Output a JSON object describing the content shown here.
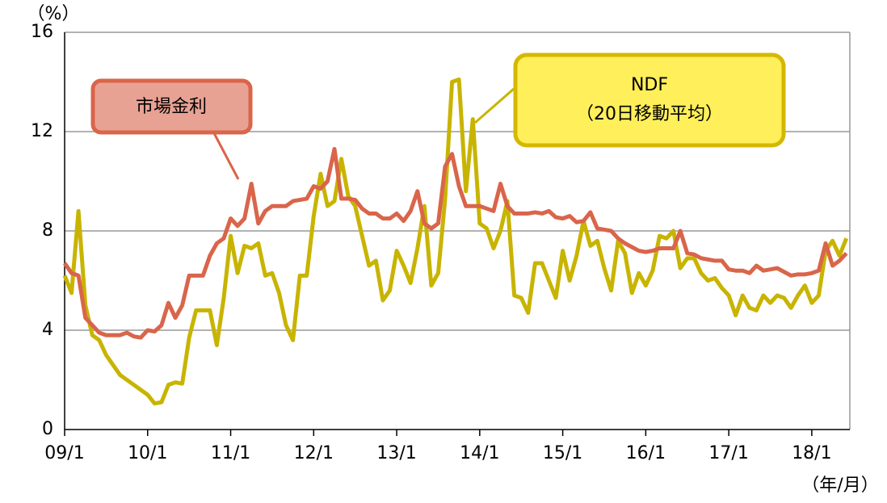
{
  "chart_data": {
    "type": "line",
    "y_unit": "（%）",
    "x_unit": "（年/月）",
    "annotations": [
      "（20日移動平均）"
    ],
    "categories": [
      "09/1",
      null,
      null,
      null,
      null,
      null,
      null,
      null,
      null,
      null,
      null,
      null,
      "10/1",
      null,
      null,
      null,
      null,
      null,
      null,
      null,
      null,
      null,
      null,
      null,
      "11/1",
      null,
      null,
      null,
      null,
      null,
      null,
      null,
      null,
      null,
      null,
      null,
      "12/1",
      null,
      null,
      null,
      null,
      null,
      null,
      null,
      null,
      null,
      null,
      null,
      "13/1",
      null,
      null,
      null,
      null,
      null,
      null,
      null,
      null,
      null,
      null,
      null,
      "14/1",
      null,
      null,
      null,
      null,
      null,
      null,
      null,
      null,
      null,
      null,
      null,
      "15/1",
      null,
      null,
      null,
      null,
      null,
      null,
      null,
      null,
      null,
      null,
      null,
      "16/1",
      null,
      null,
      null,
      null,
      null,
      null,
      null,
      null,
      null,
      null,
      null,
      "17/1",
      null,
      null,
      null,
      null,
      null,
      null,
      null,
      null,
      null,
      null,
      null,
      "18/1",
      null,
      null,
      null,
      null,
      null
    ],
    "series": [
      {
        "name": "市場金利",
        "color": "#d9654a",
        "values": [
          6.7,
          6.3,
          6.2,
          4.5,
          4.2,
          3.9,
          3.8,
          3.8,
          3.8,
          3.9,
          3.75,
          3.7,
          4.0,
          3.95,
          4.2,
          5.1,
          4.5,
          5.0,
          6.2,
          6.2,
          6.2,
          7.0,
          7.5,
          7.7,
          8.5,
          8.2,
          8.5,
          9.9,
          8.3,
          8.8,
          9.0,
          9.0,
          9.0,
          9.2,
          9.25,
          9.3,
          9.8,
          9.7,
          10.0,
          11.3,
          9.3,
          9.3,
          9.25,
          8.9,
          8.7,
          8.7,
          8.5,
          8.5,
          8.7,
          8.4,
          8.8,
          9.6,
          8.3,
          8.1,
          8.3,
          10.6,
          11.1,
          9.8,
          9.0,
          9.0,
          9.0,
          8.9,
          8.8,
          9.9,
          9.0,
          8.7,
          8.7,
          8.7,
          8.75,
          8.7,
          8.8,
          8.55,
          8.5,
          8.6,
          8.35,
          8.4,
          8.75,
          8.1,
          8.05,
          8.0,
          7.7,
          7.5,
          7.35,
          7.2,
          7.15,
          7.2,
          7.3,
          7.3,
          7.3,
          8.0,
          7.1,
          7.05,
          6.9,
          6.85,
          6.8,
          6.8,
          6.45,
          6.4,
          6.4,
          6.3,
          6.6,
          6.4,
          6.45,
          6.5,
          6.35,
          6.2,
          6.25,
          6.25,
          6.3,
          6.4,
          7.5,
          6.6,
          6.8,
          7.1
        ]
      },
      {
        "name": "NDF",
        "color": "#c8b400",
        "values": [
          6.2,
          5.5,
          8.8,
          5.0,
          3.8,
          3.6,
          3.0,
          2.6,
          2.2,
          2.0,
          1.8,
          1.6,
          1.4,
          1.05,
          1.1,
          1.8,
          1.9,
          1.85,
          3.7,
          4.8,
          4.8,
          4.8,
          3.4,
          5.3,
          7.8,
          6.3,
          7.4,
          7.3,
          7.5,
          6.2,
          6.3,
          5.5,
          4.2,
          3.6,
          6.2,
          6.2,
          8.6,
          10.3,
          9.0,
          9.2,
          10.9,
          9.4,
          9.0,
          7.8,
          6.6,
          6.8,
          5.2,
          5.6,
          7.2,
          6.6,
          5.9,
          7.3,
          9.0,
          5.8,
          6.3,
          9.3,
          14.0,
          14.1,
          9.6,
          12.5,
          8.3,
          8.1,
          7.3,
          8.0,
          9.2,
          5.4,
          5.3,
          4.7,
          6.7,
          6.7,
          6.0,
          5.3,
          7.2,
          6.0,
          7.0,
          8.4,
          7.4,
          7.6,
          6.5,
          5.6,
          7.6,
          7.1,
          5.5,
          6.3,
          5.8,
          6.4,
          7.8,
          7.7,
          8.0,
          6.5,
          6.9,
          6.9,
          6.3,
          6.0,
          6.1,
          5.7,
          5.4,
          4.6,
          5.4,
          4.9,
          4.8,
          5.4,
          5.1,
          5.4,
          5.3,
          4.9,
          5.4,
          5.8,
          5.1,
          5.4,
          7.2,
          7.6,
          7.0,
          7.7
        ]
      }
    ],
    "ylim": [
      0,
      16
    ],
    "yticks": [
      0,
      4,
      8,
      12,
      16
    ],
    "grid": true
  }
}
